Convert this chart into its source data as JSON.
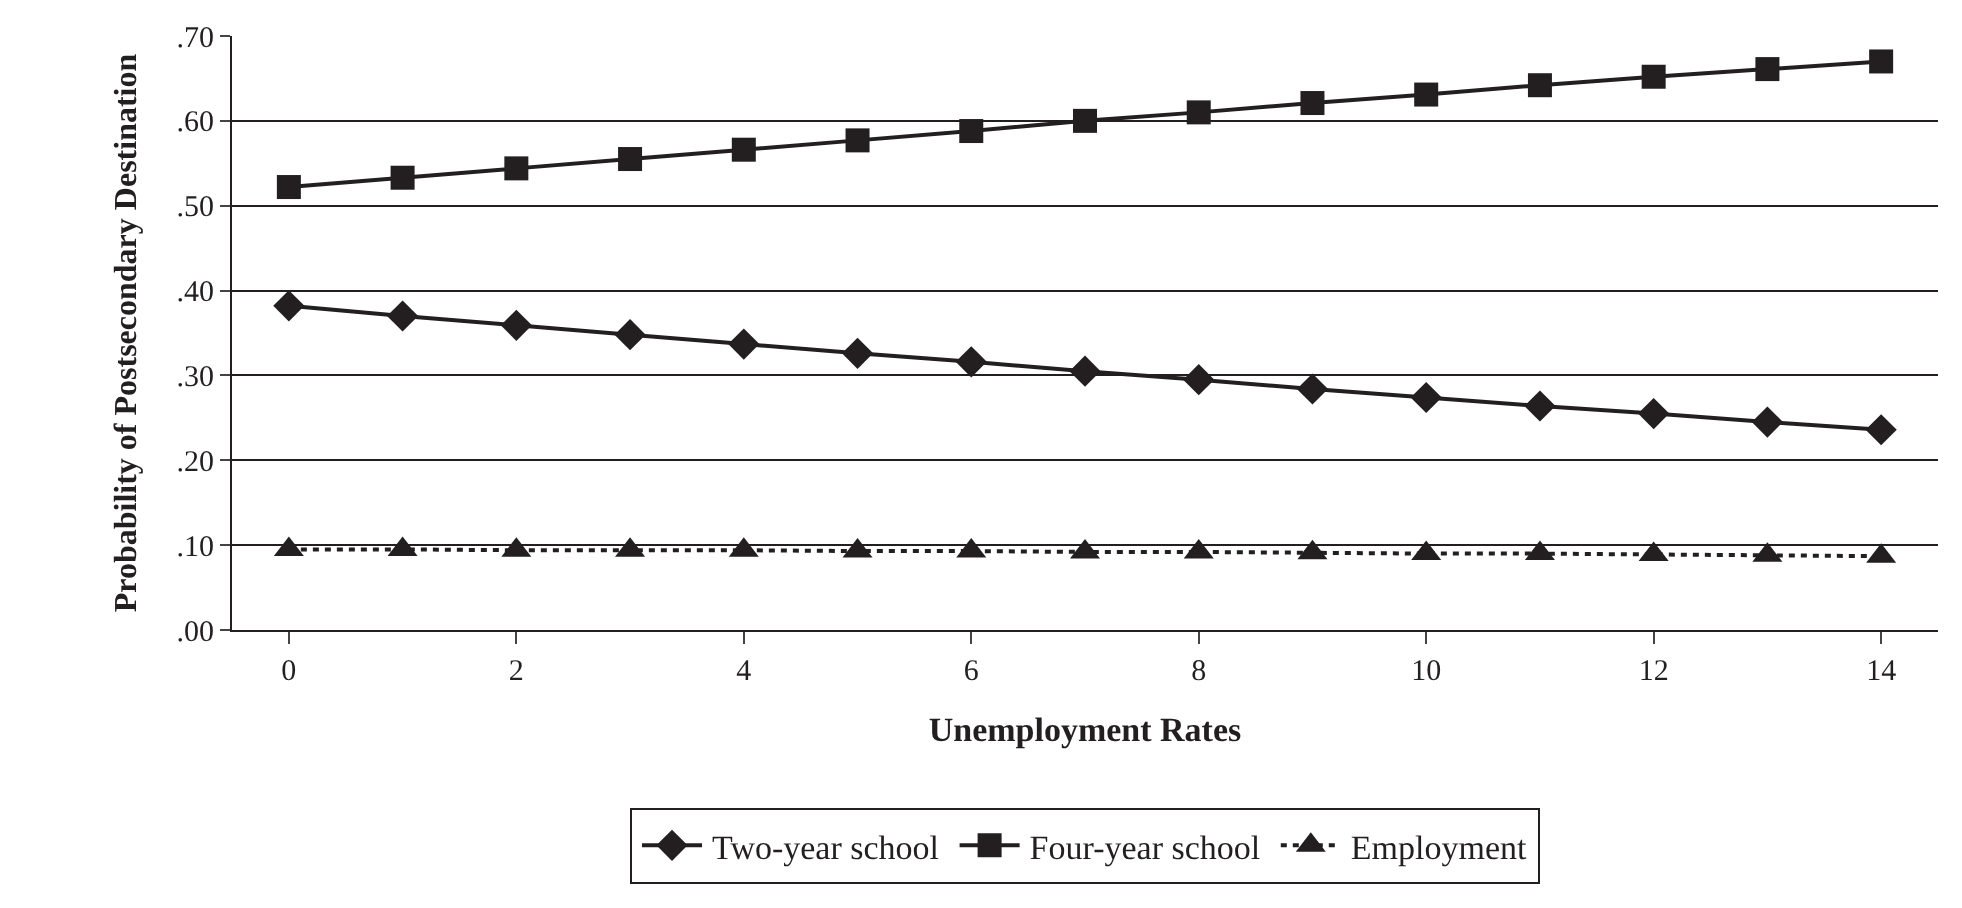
{
  "chart_data": {
    "type": "line",
    "xlabel": "Unemployment Rates",
    "ylabel": "Probability of Postsecondary Destination",
    "x": [
      0,
      1,
      2,
      3,
      4,
      5,
      6,
      7,
      8,
      9,
      10,
      11,
      12,
      13,
      14
    ],
    "series": [
      {
        "name": "Two-year school",
        "color": "#231f20",
        "marker": "diamond",
        "line_style": "solid",
        "values": [
          0.382,
          0.37,
          0.359,
          0.348,
          0.337,
          0.326,
          0.316,
          0.305,
          0.295,
          0.284,
          0.274,
          0.264,
          0.255,
          0.245,
          0.236
        ]
      },
      {
        "name": "Four-year school",
        "color": "#231f20",
        "marker": "square",
        "line_style": "solid",
        "values": [
          0.522,
          0.533,
          0.544,
          0.555,
          0.566,
          0.577,
          0.588,
          0.6,
          0.61,
          0.621,
          0.631,
          0.642,
          0.652,
          0.661,
          0.67
        ]
      },
      {
        "name": "Employment",
        "color": "#231f20",
        "marker": "triangle",
        "line_style": "dotted",
        "values": [
          0.095,
          0.095,
          0.094,
          0.094,
          0.094,
          0.093,
          0.093,
          0.092,
          0.092,
          0.091,
          0.09,
          0.09,
          0.089,
          0.088,
          0.087
        ]
      }
    ],
    "xlim": [
      -0.5,
      14.5
    ],
    "xticks": [
      0,
      2,
      4,
      6,
      8,
      10,
      12,
      14
    ],
    "ylim": [
      0,
      0.7
    ],
    "yticks": [
      {
        "value": 0,
        "label": ".00"
      },
      {
        "value": 0.1,
        "label": ".10"
      },
      {
        "value": 0.2,
        "label": ".20"
      },
      {
        "value": 0.3,
        "label": ".30"
      },
      {
        "value": 0.4,
        "label": ".40"
      },
      {
        "value": 0.5,
        "label": ".50"
      },
      {
        "value": 0.6,
        "label": ".60"
      },
      {
        "value": 0.7,
        "label": ".70"
      }
    ],
    "grid": "y",
    "legend": "bottom"
  }
}
